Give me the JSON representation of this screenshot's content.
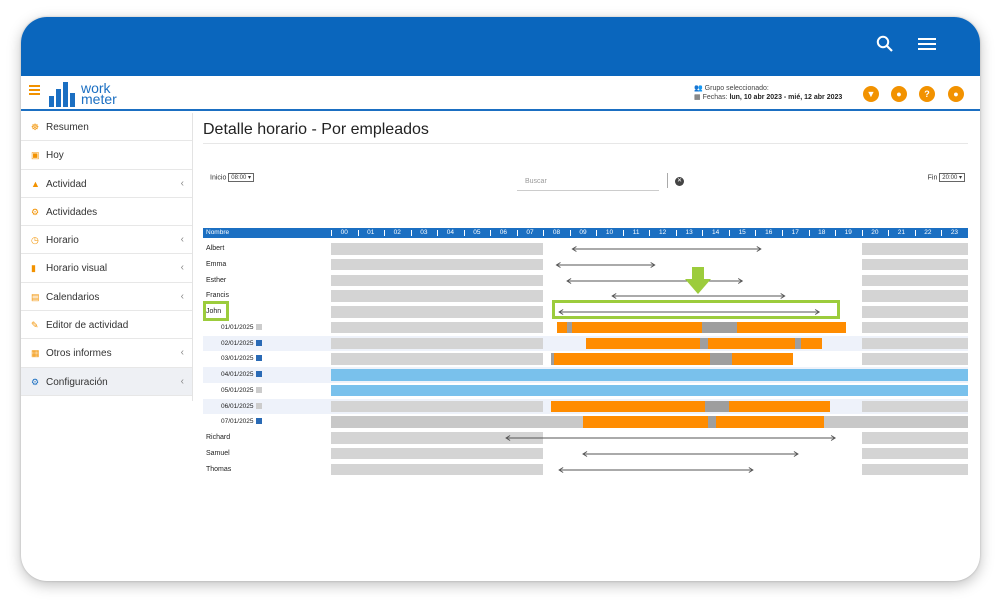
{
  "topbar": {
    "search_icon": "search-icon",
    "menu_icon": "menu-icon"
  },
  "header": {
    "menu_icon": "hamburger-icon",
    "logo_top": "work",
    "logo_bottom": "meter",
    "group_label": "Grupo seleccionado:",
    "dates_label": "Fechas:",
    "dates_value": "lun, 10 abr 2023 - mié, 12 abr 2023",
    "buttons": [
      {
        "name": "filter-button",
        "glyph": "▼",
        "icon": "filter-icon"
      },
      {
        "name": "notifications-button",
        "glyph": "●",
        "icon": "bell-icon"
      },
      {
        "name": "help-button",
        "glyph": "?",
        "icon": "help-icon"
      },
      {
        "name": "user-button",
        "glyph": "●",
        "icon": "user-icon"
      }
    ],
    "accent_color": "#f29200",
    "brand_color": "#1b6fc2"
  },
  "sidebar": {
    "items": [
      {
        "label": "Resumen",
        "icon": "dashboard-icon",
        "glyph": "☸",
        "chevron": false,
        "active": false
      },
      {
        "label": "Hoy",
        "icon": "calendar-today-icon",
        "glyph": "▣",
        "chevron": false,
        "active": false
      },
      {
        "label": "Actividad",
        "icon": "area-chart-icon",
        "glyph": "▲",
        "chevron": true,
        "active": false
      },
      {
        "label": "Actividades",
        "icon": "gears-icon",
        "glyph": "⚙",
        "chevron": false,
        "active": false
      },
      {
        "label": "Horario",
        "icon": "clock-icon",
        "glyph": "◷",
        "chevron": true,
        "active": false
      },
      {
        "label": "Horario visual",
        "icon": "bar-chart-icon",
        "glyph": "▮",
        "chevron": true,
        "active": false
      },
      {
        "label": "Calendarios",
        "icon": "calendar-icon",
        "glyph": "▤",
        "chevron": true,
        "active": false
      },
      {
        "label": "Editor de actividad",
        "icon": "edit-icon",
        "glyph": "✎",
        "chevron": false,
        "active": false
      },
      {
        "label": "Otros informes",
        "icon": "table-icon",
        "glyph": "▦",
        "chevron": true,
        "active": false
      },
      {
        "label": "Configuración",
        "icon": "gear-icon",
        "glyph": "⚙",
        "chevron": true,
        "active": true
      }
    ]
  },
  "main": {
    "title": "Detalle horario - Por empleados",
    "inicio_label": "Inicio",
    "inicio_value": "08:00",
    "search_placeholder": "Buscar",
    "fin_label": "Fin",
    "fin_value": "20:00",
    "column_name": "Nombre",
    "hours": [
      "00",
      "01",
      "02",
      "03",
      "04",
      "05",
      "06",
      "07",
      "08",
      "09",
      "10",
      "11",
      "12",
      "13",
      "14",
      "15",
      "16",
      "17",
      "18",
      "19",
      "20",
      "21",
      "22",
      "23"
    ],
    "rows": [
      {
        "label": "Albert",
        "type": "employee",
        "range": [
          9.1,
          16.2
        ]
      },
      {
        "label": "Emma",
        "type": "employee",
        "range": [
          8.5,
          12.2
        ]
      },
      {
        "label": "Esther",
        "type": "employee",
        "range": [
          8.9,
          15.5
        ]
      },
      {
        "label": "Francis",
        "type": "employee",
        "range": [
          10.6,
          17.1
        ]
      },
      {
        "label": "John",
        "type": "employee",
        "range": [
          8.6,
          18.4
        ],
        "highlighted": true
      },
      {
        "label": "01/01/2025",
        "type": "day",
        "marker": "gray",
        "segments": [
          [
            8.5,
            19.4,
            "orange"
          ],
          [
            8.9,
            9.1,
            "gray"
          ],
          [
            14.0,
            15.3,
            "gray"
          ]
        ]
      },
      {
        "label": "02/01/2025",
        "type": "day",
        "marker": "blue",
        "segments": [
          [
            9.6,
            18.5,
            "orange"
          ],
          [
            13.9,
            14.2,
            "gray"
          ],
          [
            17.5,
            17.7,
            "gray"
          ]
        ]
      },
      {
        "label": "03/01/2025",
        "type": "day",
        "marker": "blue",
        "segments": [
          [
            8.3,
            17.4,
            "orange"
          ],
          [
            8.3,
            8.4,
            "gray"
          ],
          [
            14.3,
            15.1,
            "gray"
          ]
        ]
      },
      {
        "label": "04/01/2025",
        "type": "day",
        "marker": "blue",
        "full_day": "blue"
      },
      {
        "label": "05/01/2025",
        "type": "day",
        "marker": "gray",
        "full_day": "blue"
      },
      {
        "label": "06/01/2025",
        "type": "day",
        "marker": "gray",
        "segments": [
          [
            8.3,
            18.8,
            "orange"
          ],
          [
            14.1,
            15.0,
            "gray"
          ]
        ]
      },
      {
        "label": "07/01/2025",
        "type": "day",
        "marker": "blue",
        "full_day": "gray",
        "segments": [
          [
            9.5,
            18.6,
            "orange"
          ],
          [
            14.2,
            14.5,
            "gray"
          ]
        ]
      },
      {
        "label": "Richard",
        "type": "employee",
        "range": [
          6.6,
          19.0
        ]
      },
      {
        "label": "Samuel",
        "type": "employee",
        "range": [
          9.5,
          17.6
        ]
      },
      {
        "label": "Thomas",
        "type": "employee",
        "range": [
          8.6,
          15.9
        ]
      }
    ],
    "colors": {
      "orange": "#ff8c00",
      "gray": "#9e9e9e",
      "blue": "#79c1ec",
      "offhours": "#d4d4d4",
      "arrow": "#555555",
      "highlight": "#9ccc3c"
    }
  }
}
